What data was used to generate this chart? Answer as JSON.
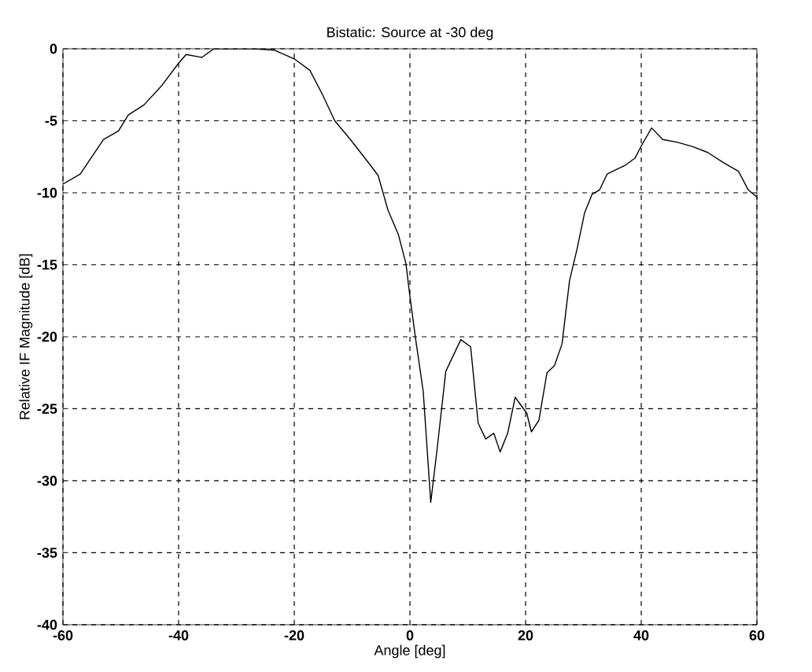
{
  "chart_data": {
    "type": "line",
    "title": "Bistatic: Source at -30 deg",
    "xlabel": "Angle [deg]",
    "ylabel": "Relative IF Magnitude [dB]",
    "xlim": [
      -60,
      60
    ],
    "ylim": [
      -40,
      0
    ],
    "xticks": [
      -60,
      -40,
      -20,
      0,
      20,
      40,
      60
    ],
    "yticks": [
      -40,
      -35,
      -30,
      -25,
      -20,
      -15,
      -10,
      -5,
      0
    ],
    "grid": true,
    "line_style": "solid",
    "marker": "none",
    "series": [
      {
        "color": "#000000",
        "x": [
          -60,
          -57,
          -53,
          -50.4,
          -48.7,
          -46,
          -43,
          -40,
          -38.7,
          -36,
          -33.9,
          -27,
          -23.4,
          -20,
          -17.3,
          -15.1,
          -13,
          -10.3,
          -6.8,
          -5.5,
          -3.8,
          -2,
          -0.7,
          0,
          1,
          2.3,
          3.6,
          4.7,
          6.2,
          8.8,
          10.5,
          11.8,
          13.1,
          14.5,
          15.6,
          16.9,
          18.2,
          19.1,
          20.2,
          21,
          22.3,
          23.7,
          25,
          26.3,
          27.6,
          28.9,
          30.2,
          31.5,
          32.8,
          34.1,
          37.2,
          38.9,
          40.2,
          41.8,
          43.7,
          46.3,
          48.9,
          51.5,
          54.2,
          56.8,
          58.5,
          60
        ],
        "values": [
          -9.4,
          -8.7,
          -6.3,
          -5.7,
          -4.6,
          -3.9,
          -2.6,
          -1.0,
          -0.4,
          -0.6,
          0,
          0,
          -0.1,
          -0.7,
          -1.5,
          -3.2,
          -5,
          -6.3,
          -8.1,
          -8.8,
          -11.2,
          -12.9,
          -14.9,
          -17.2,
          -20.2,
          -23.8,
          -31.5,
          -27.8,
          -22.4,
          -20.2,
          -20.7,
          -26,
          -27.1,
          -26.7,
          -28,
          -26.7,
          -24.2,
          -24.7,
          -25.3,
          -26.6,
          -25.8,
          -22.5,
          -22,
          -20.5,
          -16.1,
          -13.9,
          -11.4,
          -10.1,
          -9.8,
          -8.7,
          -8.1,
          -7.6,
          -6.6,
          -5.5,
          -6.3,
          -6.5,
          -6.8,
          -7.2,
          -7.9,
          -8.5,
          -9.8,
          -10.3
        ]
      }
    ]
  }
}
